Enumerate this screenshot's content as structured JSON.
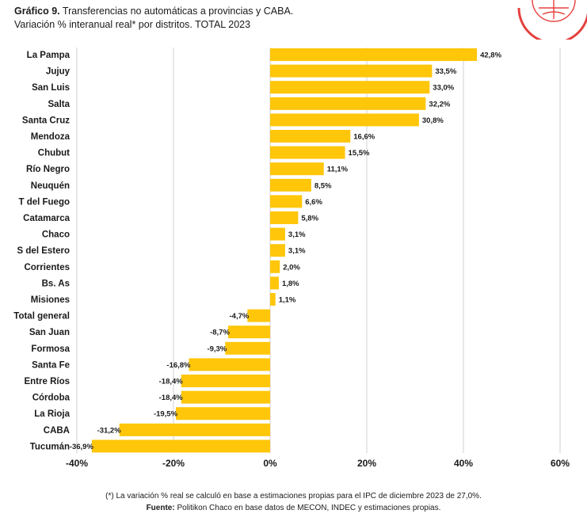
{
  "header": {
    "title_bold": "Gráfico 9.",
    "title_rest": " Transferencias no automáticas a provincias y CABA.",
    "subtitle": "Variación % interanual real* por distritos. TOTAL 2023"
  },
  "colors": {
    "bar": "#FFC60A",
    "grid": "#d0d0d0",
    "text": "#1a1a1a",
    "logo": "#E5413E"
  },
  "logo": {
    "icon": "globe-logo-icon"
  },
  "chart_data": {
    "type": "bar",
    "orientation": "horizontal",
    "title": "Transferencias no automáticas a provincias y CABA. Variación % interanual real* por distritos. TOTAL 2023",
    "categories": [
      "La Pampa",
      "Jujuy",
      "San Luis",
      "Salta",
      "Santa Cruz",
      "Mendoza",
      "Chubut",
      "Río Negro",
      "Neuquén",
      "T del Fuego",
      "Catamarca",
      "Chaco",
      "S del Estero",
      "Corrientes",
      "Bs. As",
      "Misiones",
      "Total general",
      "San Juan",
      "Formosa",
      "Santa Fe",
      "Entre Ríos",
      "Córdoba",
      "La Rioja",
      "CABA",
      "Tucumán"
    ],
    "values": [
      42.8,
      33.5,
      33.0,
      32.2,
      30.8,
      16.6,
      15.5,
      11.1,
      8.5,
      6.6,
      5.8,
      3.1,
      3.1,
      2.0,
      1.8,
      1.1,
      -4.7,
      -8.7,
      -9.3,
      -16.8,
      -18.4,
      -18.4,
      -19.5,
      -31.2,
      -36.9
    ],
    "value_labels": [
      "42,8%",
      "33,5%",
      "33,0%",
      "32,2%",
      "30,8%",
      "16,6%",
      "15,5%",
      "11,1%",
      "8,5%",
      "6,6%",
      "5,8%",
      "3,1%",
      "3,1%",
      "2,0%",
      "1,8%",
      "1,1%",
      "-4,7%",
      "-8,7%",
      "-9,3%",
      "-16,8%",
      "-18,4%",
      "-18,4%",
      "-19,5%",
      "-31,2%",
      "-36,9%"
    ],
    "xlim": [
      -40,
      60
    ],
    "xticks": [
      -40,
      -20,
      0,
      20,
      40,
      60
    ],
    "xtick_labels": [
      "-40%",
      "-20%",
      "0%",
      "20%",
      "40%",
      "60%"
    ],
    "xlabel": "",
    "ylabel": "",
    "grid": true
  },
  "footer": {
    "note": "(*) La variación % real se calculó en base a estimaciones propias para el IPC de diciembre 2023 de 27,0%.",
    "source_label": "Fuente:",
    "source_text": " Politikon Chaco en base datos de MECON, INDEC y estimaciones propias."
  }
}
